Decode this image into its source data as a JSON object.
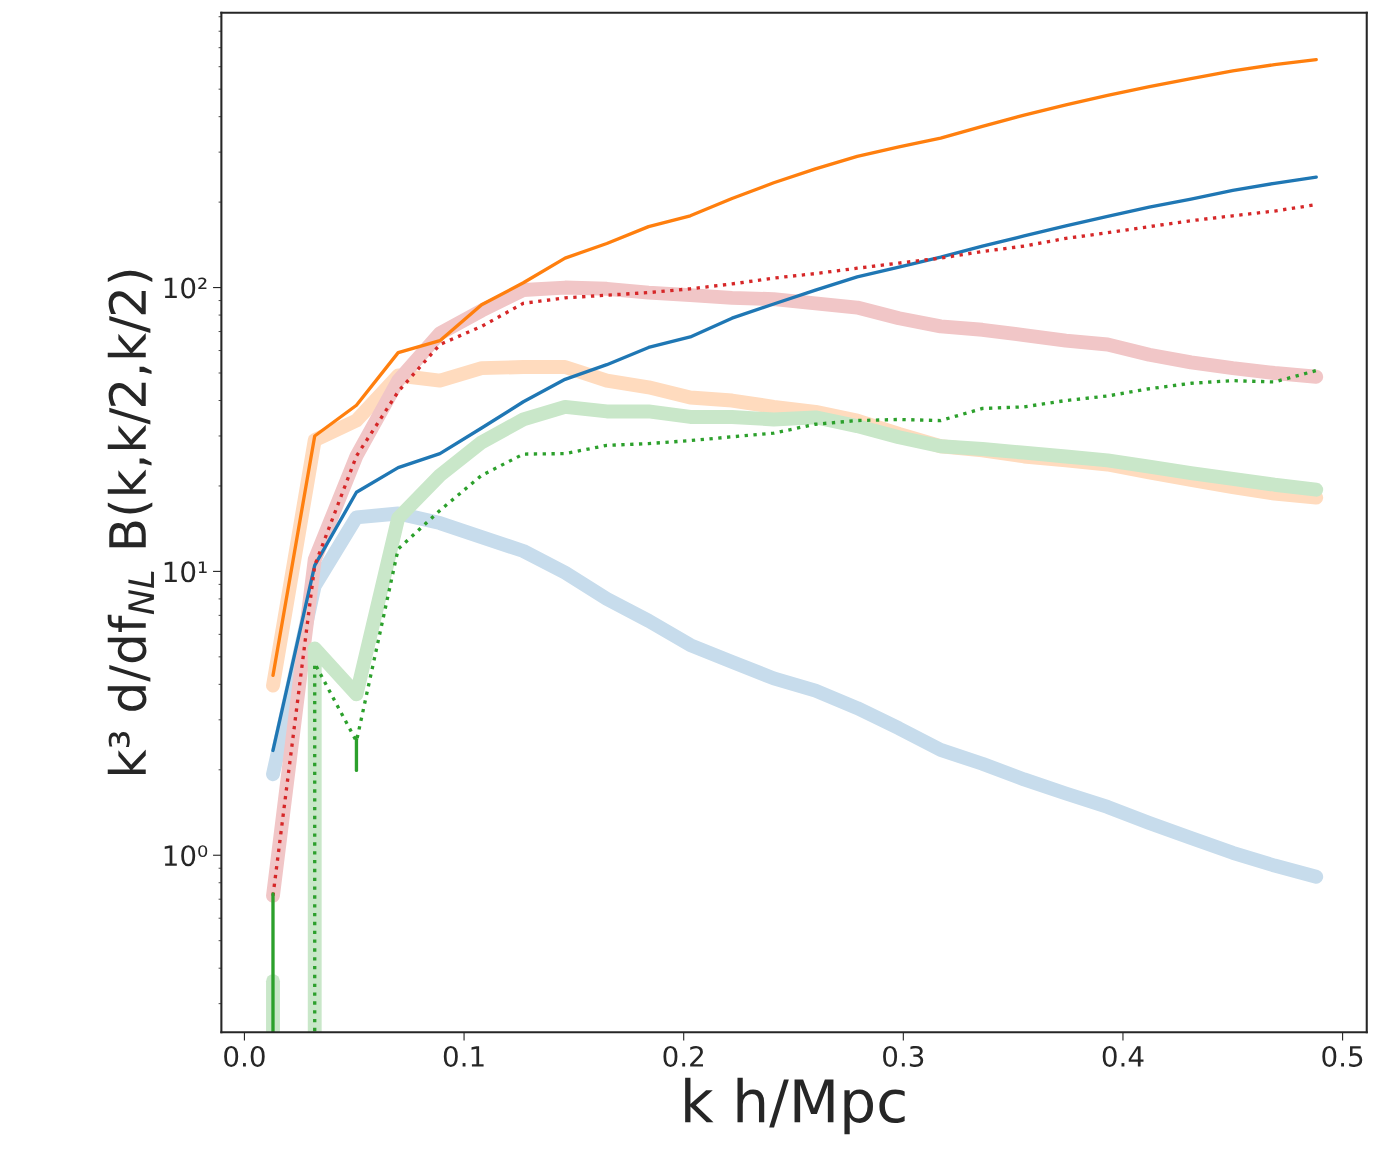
{
  "chart_data": {
    "type": "line",
    "xlabel": "k h/Mpc",
    "ylabel": "k³ d/df$_{NL}$ B(k,k/2,k/2)",
    "log": "y",
    "grid": false,
    "legend": false,
    "x": [
      0.013,
      0.032,
      0.051,
      0.07,
      0.089,
      0.108,
      0.127,
      0.146,
      0.165,
      0.184,
      0.203,
      0.222,
      0.241,
      0.26,
      0.279,
      0.298,
      0.317,
      0.336,
      0.355,
      0.374,
      0.393,
      0.412,
      0.431,
      0.45,
      0.469,
      0.488
    ],
    "xlim": [
      -0.0105,
      0.511
    ],
    "ylim": [
      0.238,
      930
    ],
    "xticks": [
      {
        "value": 0,
        "label": "0.0"
      },
      0.1,
      0.2,
      0.3,
      0.4,
      0.5
    ],
    "yticks": [
      {
        "value": 1,
        "label": "10⁰"
      },
      {
        "value": 10,
        "label": "10¹"
      },
      {
        "value": 100,
        "label": "10²"
      }
    ],
    "series": [
      {
        "color": "#c7dcec",
        "line_style": "solid",
        "values": [
          1.93,
          8.9,
          15.5,
          16,
          14.8,
          13.2,
          11.8,
          9.9,
          8.0,
          6.7,
          5.5,
          4.8,
          4.2,
          3.8,
          3.3,
          2.8,
          2.35,
          2.1,
          1.85,
          1.65,
          1.48,
          1.3,
          1.15,
          1.02,
          0.92,
          0.84
        ]
      },
      {
        "color": "#ffdbbe",
        "line_style": "solid",
        "values": [
          3.96,
          29,
          34,
          49,
          47,
          52,
          52.5,
          52.5,
          47,
          44.5,
          41,
          40,
          38,
          36.5,
          34,
          30.5,
          27.6,
          26.7,
          25.4,
          24.6,
          23.8,
          22.3,
          21,
          19.8,
          18.8,
          18.2
        ]
      },
      {
        "color": "#f1c6c7",
        "line_style": "solid",
        "values": [
          0.72,
          11,
          25.5,
          47,
          69,
          83,
          98,
          100,
          99,
          96,
          94,
          92,
          91,
          88,
          85,
          78,
          73,
          71,
          68,
          65,
          63,
          58,
          54.5,
          52,
          50,
          48.5
        ]
      },
      {
        "color": "#c9e7c9",
        "line_style": "solid",
        "x": [
          0.013,
          0.013
        ],
        "values": [
          0.36,
          0.24
        ]
      },
      {
        "color": "#c9e7c9",
        "line_style": "solid",
        "x": [
          0.032,
          0.032,
          0.051,
          0.07,
          0.089,
          0.108,
          0.127,
          0.146,
          0.165,
          0.184,
          0.203,
          0.222,
          0.241,
          0.26,
          0.279,
          0.298,
          0.317,
          0.336,
          0.355,
          0.374,
          0.393,
          0.412,
          0.431,
          0.45,
          0.469,
          0.488
        ],
        "values": [
          0.24,
          5.35,
          3.69,
          15.4,
          21.8,
          28.5,
          34.3,
          38,
          36.6,
          36.6,
          35,
          35,
          34.3,
          34.9,
          32.5,
          29.7,
          27.6,
          27,
          26.2,
          25.4,
          24.6,
          23.4,
          22.2,
          21.2,
          20.2,
          19.4
        ]
      },
      {
        "color": "#1f77b4",
        "line_style": "solid",
        "values": [
          2.34,
          10.5,
          19,
          23.2,
          26,
          32,
          39.6,
          47.5,
          53.5,
          61.5,
          67,
          78,
          87.5,
          98,
          109,
          118,
          128,
          140,
          152,
          165,
          178,
          192,
          205,
          220,
          233,
          245
        ]
      },
      {
        "color": "#ff7f0e",
        "line_style": "solid",
        "values": [
          4.3,
          30,
          38.5,
          59,
          65,
          87,
          104,
          127,
          143,
          164,
          179,
          206,
          234,
          262,
          290,
          313,
          336,
          370,
          405,
          440,
          475,
          510,
          545,
          580,
          610,
          635
        ]
      },
      {
        "color": "#d62728",
        "line_style": "dotted",
        "values": [
          0.72,
          10.5,
          25.5,
          43,
          63,
          73,
          88,
          92,
          94,
          96,
          99,
          103,
          108,
          112,
          117,
          122,
          127,
          134,
          140,
          149,
          156,
          164,
          172,
          179,
          186,
          196
        ]
      },
      {
        "color": "#2ca02c",
        "line_style": "dotted",
        "x": [
          0.032,
          0.032,
          0.051,
          0.07,
          0.089,
          0.108,
          0.127,
          0.146,
          0.165,
          0.184,
          0.203,
          0.222,
          0.241,
          0.26,
          0.279,
          0.298,
          0.317,
          0.336,
          0.355,
          0.374,
          0.393,
          0.412,
          0.431,
          0.45,
          0.469,
          0.488
        ],
        "values": [
          0.24,
          4.74,
          2.52,
          12.0,
          16.4,
          21.8,
          25.9,
          26,
          27.8,
          28.2,
          28.9,
          29.8,
          30.7,
          33,
          34,
          34.3,
          34,
          37.5,
          38,
          40,
          41.5,
          44,
          46,
          47,
          46.5,
          51
        ]
      },
      {
        "color": "#2ca02c",
        "line_style": "solid",
        "x": [
          0.013,
          0.013
        ],
        "values": [
          0.73,
          0.24
        ]
      },
      {
        "color": "#2ca02c",
        "line_style": "solid",
        "x": [
          0.051,
          0.051
        ],
        "values": [
          2.56,
          1.99
        ]
      }
    ]
  }
}
